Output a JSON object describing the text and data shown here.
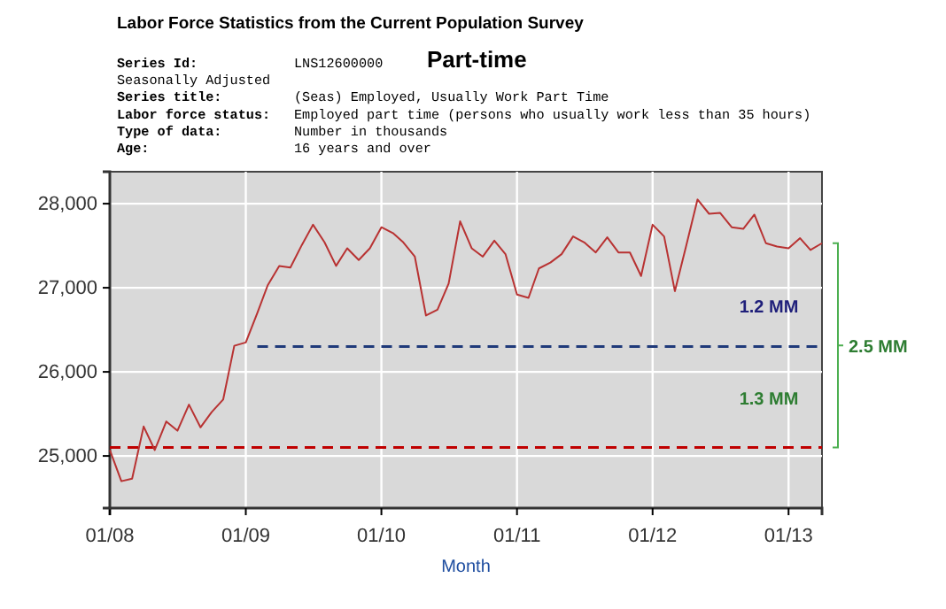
{
  "chart_data": {
    "type": "line",
    "title": "Labor Force Statistics from the Current Population Survey",
    "subtitle": "Part-time",
    "xlabel": "Month",
    "x": [
      "2008-01",
      "2008-02",
      "2008-03",
      "2008-04",
      "2008-05",
      "2008-06",
      "2008-07",
      "2008-08",
      "2008-09",
      "2008-10",
      "2008-11",
      "2008-12",
      "2009-01",
      "2009-02",
      "2009-03",
      "2009-04",
      "2009-05",
      "2009-06",
      "2009-07",
      "2009-08",
      "2009-09",
      "2009-10",
      "2009-11",
      "2009-12",
      "2010-01",
      "2010-02",
      "2010-03",
      "2010-04",
      "2010-05",
      "2010-06",
      "2010-07",
      "2010-08",
      "2010-09",
      "2010-10",
      "2010-11",
      "2010-12",
      "2011-01",
      "2011-02",
      "2011-03",
      "2011-04",
      "2011-05",
      "2011-06",
      "2011-07",
      "2011-08",
      "2011-09",
      "2011-10",
      "2011-11",
      "2011-12",
      "2012-01",
      "2012-02",
      "2012-03",
      "2012-04",
      "2012-05",
      "2012-06",
      "2012-07",
      "2012-08",
      "2012-09",
      "2012-10",
      "2012-11",
      "2012-12",
      "2013-01",
      "2013-02",
      "2013-03",
      "2013-04"
    ],
    "series": [
      {
        "color": "#b83232",
        "values": [
          25070,
          24700,
          24730,
          25350,
          25070,
          25410,
          25300,
          25610,
          25340,
          25520,
          25670,
          26310,
          26350,
          26700,
          27030,
          27260,
          27240,
          27510,
          27750,
          27540,
          27260,
          27470,
          27330,
          27470,
          27720,
          27650,
          27540,
          27370,
          26670,
          26740,
          27050,
          27790,
          27470,
          27370,
          27560,
          27400,
          26920,
          26880,
          27230,
          27300,
          27400,
          27610,
          27540,
          27420,
          27600,
          27420,
          27420,
          27140,
          27750,
          27610,
          26960,
          27510,
          28050,
          27880,
          27890,
          27720,
          27700,
          27870,
          27530,
          27490,
          27470,
          27590,
          27450,
          27530
        ]
      },
      {
        "color": "#1f3a7a",
        "line_style": "dashed",
        "x": [
          "2009-02",
          "2013-04"
        ],
        "values": [
          26300,
          26300
        ]
      },
      {
        "color": "#c00000",
        "line_style": "dashed",
        "x": [
          "2008-01",
          "2013-04"
        ],
        "values": [
          25100,
          25100
        ]
      }
    ],
    "xlim": [
      "2008-01",
      "2013-04"
    ],
    "xticks": [
      {
        "value": "2008-01",
        "label": "01/08"
      },
      {
        "value": "2009-01",
        "label": "01/09"
      },
      {
        "value": "2010-01",
        "label": "01/10"
      },
      {
        "value": "2011-01",
        "label": "01/11"
      },
      {
        "value": "2012-01",
        "label": "01/12"
      },
      {
        "value": "2013-01",
        "label": "01/13"
      }
    ],
    "ylim": [
      24380,
      28380
    ],
    "yticks": [
      {
        "value": 25000,
        "label": "25,000"
      },
      {
        "value": 26000,
        "label": "26,000"
      },
      {
        "value": 27000,
        "label": "27,000"
      },
      {
        "value": 28000,
        "label": "28,000"
      }
    ],
    "grid": true,
    "annotations": [
      "Series Id:\tLNS12600000",
      "Seasonally Adjusted",
      "Series title:\t(Seas) Employed, Usually Work Part Time",
      "Labor force status:\tEmployed part time (persons who usually work less than 35 hours)",
      "Type of data:\tNumber in thousands",
      "Age:\t16 years and over",
      "1.2 MM",
      "1.3 MM",
      "2.5 MM"
    ]
  }
}
